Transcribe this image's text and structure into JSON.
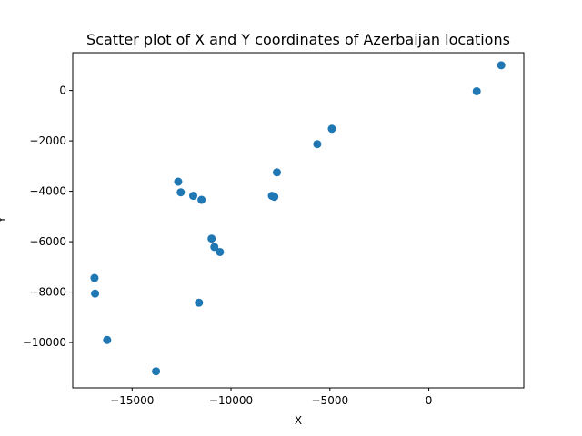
{
  "chart_data": {
    "type": "scatter",
    "title": "Scatter plot of X and Y coordinates of Azerbaijan locations",
    "xlabel": "X",
    "ylabel": "Y",
    "xlim": [
      -18000,
      4800
    ],
    "ylim": [
      -11800,
      1500
    ],
    "grid": false,
    "marker_color": "#1f77b4",
    "x_ticks": [
      -15000,
      -10000,
      -5000,
      0
    ],
    "y_ticks": [
      -10000,
      -8000,
      -6000,
      -4000,
      -2000,
      0
    ],
    "x_tick_labels": [
      "−15000",
      "−10000",
      "−5000",
      "0"
    ],
    "y_tick_labels": [
      "−10000",
      "−8000",
      "−6000",
      "−4000",
      "−2000",
      "0"
    ],
    "points": [
      {
        "x": 3660,
        "y": 1000
      },
      {
        "x": 2420,
        "y": -30
      },
      {
        "x": -4900,
        "y": -1520
      },
      {
        "x": -5640,
        "y": -2130
      },
      {
        "x": -7680,
        "y": -3250
      },
      {
        "x": -7930,
        "y": -4180
      },
      {
        "x": -7810,
        "y": -4220
      },
      {
        "x": -12670,
        "y": -3620
      },
      {
        "x": -12540,
        "y": -4040
      },
      {
        "x": -11910,
        "y": -4180
      },
      {
        "x": -11490,
        "y": -4340
      },
      {
        "x": -10980,
        "y": -5880
      },
      {
        "x": -10840,
        "y": -6210
      },
      {
        "x": -10560,
        "y": -6410
      },
      {
        "x": -11620,
        "y": -8420
      },
      {
        "x": -16900,
        "y": -7440
      },
      {
        "x": -16870,
        "y": -8060
      },
      {
        "x": -16260,
        "y": -9900
      },
      {
        "x": -13790,
        "y": -11140
      }
    ]
  }
}
